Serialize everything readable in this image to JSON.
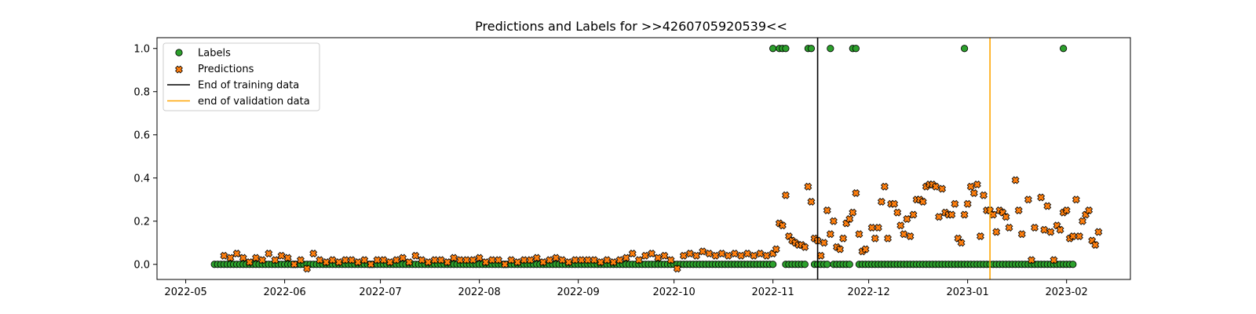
{
  "chart_data": {
    "type": "scatter",
    "title": "Predictions and Labels for >>4260705920539<<",
    "xlabel": "",
    "ylabel": "",
    "x_axis": {
      "type": "date",
      "range": [
        "2022-04-22",
        "2023-02-21"
      ],
      "ticks": [
        "2022-05-01",
        "2022-06-01",
        "2022-07-01",
        "2022-08-01",
        "2022-09-01",
        "2022-10-01",
        "2022-11-01",
        "2022-12-01",
        "2023-01-01",
        "2023-02-01"
      ],
      "tick_labels": [
        "2022-05",
        "2022-06",
        "2022-07",
        "2022-08",
        "2022-09",
        "2022-10",
        "2022-11",
        "2022-12",
        "2023-01",
        "2023-02"
      ]
    },
    "y_axis": {
      "range": [
        -0.07,
        1.05
      ],
      "ticks": [
        0.0,
        0.2,
        0.4,
        0.6,
        0.8,
        1.0
      ],
      "tick_labels": [
        "0.0",
        "0.2",
        "0.4",
        "0.6",
        "0.8",
        "1.0"
      ]
    },
    "grid": false,
    "legend": {
      "placement": "top-left",
      "entries": [
        {
          "label": "Labels",
          "marker": "circle",
          "color": "#2ca02c"
        },
        {
          "label": "Predictions",
          "marker": "x",
          "color": "#ff7f0e"
        },
        {
          "label": "End of training data",
          "marker": "line",
          "color": "#000000"
        },
        {
          "label": "end of validation data",
          "marker": "line",
          "color": "#ffa500"
        }
      ]
    },
    "vlines": [
      {
        "name": "End of training data",
        "x": "2022-11-15",
        "color": "#000000"
      },
      {
        "name": "end of validation data",
        "x": "2023-01-08",
        "color": "#ffa500"
      }
    ],
    "series": [
      {
        "name": "Labels",
        "marker": "circle",
        "color": "#2ca02c",
        "start_date": "2022-05-10",
        "end_date": "2023-02-03",
        "default_value": 0.0,
        "gaps": [
          [
            "2022-11-02",
            "2022-11-04"
          ],
          [
            "2022-11-12",
            "2022-11-13"
          ],
          [
            "2022-11-19",
            "2022-11-19"
          ],
          [
            "2022-11-26",
            "2022-11-27"
          ]
        ],
        "ones": [
          "2022-11-01",
          "2022-11-03",
          "2022-11-04",
          "2022-11-05",
          "2022-11-12",
          "2022-11-13",
          "2022-11-19",
          "2022-11-26",
          "2022-11-27",
          "2022-12-31",
          "2023-01-31"
        ]
      },
      {
        "name": "Predictions",
        "marker": "x",
        "color": "#ff7f0e",
        "points": [
          [
            "2022-05-13",
            0.04
          ],
          [
            "2022-05-15",
            0.03
          ],
          [
            "2022-05-17",
            0.05
          ],
          [
            "2022-05-19",
            0.03
          ],
          [
            "2022-05-21",
            0.01
          ],
          [
            "2022-05-23",
            0.03
          ],
          [
            "2022-05-25",
            0.02
          ],
          [
            "2022-05-27",
            0.05
          ],
          [
            "2022-05-29",
            0.02
          ],
          [
            "2022-05-31",
            0.04
          ],
          [
            "2022-06-02",
            0.03
          ],
          [
            "2022-06-04",
            0.0
          ],
          [
            "2022-06-06",
            0.02
          ],
          [
            "2022-06-08",
            -0.02
          ],
          [
            "2022-06-10",
            0.05
          ],
          [
            "2022-06-12",
            0.02
          ],
          [
            "2022-06-14",
            0.01
          ],
          [
            "2022-06-16",
            0.02
          ],
          [
            "2022-06-18",
            0.01
          ],
          [
            "2022-06-20",
            0.02
          ],
          [
            "2022-06-22",
            0.02
          ],
          [
            "2022-06-24",
            0.01
          ],
          [
            "2022-06-26",
            0.02
          ],
          [
            "2022-06-28",
            0.0
          ],
          [
            "2022-06-30",
            0.02
          ],
          [
            "2022-07-02",
            0.02
          ],
          [
            "2022-07-04",
            0.01
          ],
          [
            "2022-07-06",
            0.02
          ],
          [
            "2022-07-08",
            0.03
          ],
          [
            "2022-07-10",
            0.01
          ],
          [
            "2022-07-12",
            0.04
          ],
          [
            "2022-07-14",
            0.02
          ],
          [
            "2022-07-16",
            0.01
          ],
          [
            "2022-07-18",
            0.02
          ],
          [
            "2022-07-20",
            0.02
          ],
          [
            "2022-07-22",
            0.01
          ],
          [
            "2022-07-24",
            0.03
          ],
          [
            "2022-07-26",
            0.02
          ],
          [
            "2022-07-28",
            0.02
          ],
          [
            "2022-07-30",
            0.02
          ],
          [
            "2022-08-01",
            0.03
          ],
          [
            "2022-08-03",
            0.01
          ],
          [
            "2022-08-05",
            0.02
          ],
          [
            "2022-08-07",
            0.02
          ],
          [
            "2022-08-09",
            0.0
          ],
          [
            "2022-08-11",
            0.02
          ],
          [
            "2022-08-13",
            0.01
          ],
          [
            "2022-08-15",
            0.02
          ],
          [
            "2022-08-17",
            0.02
          ],
          [
            "2022-08-19",
            0.03
          ],
          [
            "2022-08-21",
            0.01
          ],
          [
            "2022-08-23",
            0.02
          ],
          [
            "2022-08-25",
            0.03
          ],
          [
            "2022-08-27",
            0.02
          ],
          [
            "2022-08-29",
            0.01
          ],
          [
            "2022-08-31",
            0.02
          ],
          [
            "2022-09-02",
            0.02
          ],
          [
            "2022-09-04",
            0.02
          ],
          [
            "2022-09-06",
            0.02
          ],
          [
            "2022-09-08",
            0.01
          ],
          [
            "2022-09-10",
            0.02
          ],
          [
            "2022-09-12",
            0.01
          ],
          [
            "2022-09-14",
            0.02
          ],
          [
            "2022-09-16",
            0.03
          ],
          [
            "2022-09-18",
            0.05
          ],
          [
            "2022-09-20",
            0.02
          ],
          [
            "2022-09-22",
            0.04
          ],
          [
            "2022-09-24",
            0.05
          ],
          [
            "2022-09-26",
            0.03
          ],
          [
            "2022-09-28",
            0.04
          ],
          [
            "2022-09-30",
            0.02
          ],
          [
            "2022-10-02",
            -0.02
          ],
          [
            "2022-10-04",
            0.04
          ],
          [
            "2022-10-06",
            0.05
          ],
          [
            "2022-10-08",
            0.04
          ],
          [
            "2022-10-10",
            0.06
          ],
          [
            "2022-10-12",
            0.05
          ],
          [
            "2022-10-14",
            0.04
          ],
          [
            "2022-10-16",
            0.05
          ],
          [
            "2022-10-18",
            0.04
          ],
          [
            "2022-10-20",
            0.05
          ],
          [
            "2022-10-22",
            0.04
          ],
          [
            "2022-10-24",
            0.05
          ],
          [
            "2022-10-26",
            0.04
          ],
          [
            "2022-10-28",
            0.05
          ],
          [
            "2022-10-30",
            0.04
          ],
          [
            "2022-11-01",
            0.05
          ],
          [
            "2022-11-02",
            0.07
          ],
          [
            "2022-11-03",
            0.19
          ],
          [
            "2022-11-04",
            0.18
          ],
          [
            "2022-11-05",
            0.32
          ],
          [
            "2022-11-06",
            0.13
          ],
          [
            "2022-11-07",
            0.11
          ],
          [
            "2022-11-08",
            0.1
          ],
          [
            "2022-11-09",
            0.09
          ],
          [
            "2022-11-10",
            0.09
          ],
          [
            "2022-11-11",
            0.08
          ],
          [
            "2022-11-12",
            0.36
          ],
          [
            "2022-11-13",
            0.29
          ],
          [
            "2022-11-14",
            0.12
          ],
          [
            "2022-11-15",
            0.11
          ],
          [
            "2022-11-16",
            0.04
          ],
          [
            "2022-11-17",
            0.1
          ],
          [
            "2022-11-18",
            0.25
          ],
          [
            "2022-11-19",
            0.14
          ],
          [
            "2022-11-20",
            0.2
          ],
          [
            "2022-11-21",
            0.08
          ],
          [
            "2022-11-22",
            0.07
          ],
          [
            "2022-11-23",
            0.12
          ],
          [
            "2022-11-24",
            0.19
          ],
          [
            "2022-11-25",
            0.21
          ],
          [
            "2022-11-26",
            0.24
          ],
          [
            "2022-11-27",
            0.33
          ],
          [
            "2022-11-28",
            0.14
          ],
          [
            "2022-11-29",
            0.06
          ],
          [
            "2022-11-30",
            0.07
          ],
          [
            "2022-12-02",
            0.17
          ],
          [
            "2022-12-03",
            0.12
          ],
          [
            "2022-12-04",
            0.17
          ],
          [
            "2022-12-05",
            0.29
          ],
          [
            "2022-12-06",
            0.36
          ],
          [
            "2022-12-07",
            0.12
          ],
          [
            "2022-12-08",
            0.28
          ],
          [
            "2022-12-09",
            0.28
          ],
          [
            "2022-12-10",
            0.24
          ],
          [
            "2022-12-11",
            0.18
          ],
          [
            "2022-12-12",
            0.14
          ],
          [
            "2022-12-13",
            0.21
          ],
          [
            "2022-12-14",
            0.13
          ],
          [
            "2022-12-15",
            0.23
          ],
          [
            "2022-12-16",
            0.3
          ],
          [
            "2022-12-17",
            0.3
          ],
          [
            "2022-12-18",
            0.29
          ],
          [
            "2022-12-19",
            0.36
          ],
          [
            "2022-12-20",
            0.37
          ],
          [
            "2022-12-21",
            0.37
          ],
          [
            "2022-12-22",
            0.36
          ],
          [
            "2022-12-23",
            0.22
          ],
          [
            "2022-12-24",
            0.35
          ],
          [
            "2022-12-25",
            0.24
          ],
          [
            "2022-12-26",
            0.23
          ],
          [
            "2022-12-27",
            0.23
          ],
          [
            "2022-12-28",
            0.28
          ],
          [
            "2022-12-29",
            0.12
          ],
          [
            "2022-12-30",
            0.1
          ],
          [
            "2022-12-31",
            0.23
          ],
          [
            "2023-01-01",
            0.28
          ],
          [
            "2023-01-02",
            0.36
          ],
          [
            "2023-01-03",
            0.33
          ],
          [
            "2023-01-04",
            0.37
          ],
          [
            "2023-01-05",
            0.13
          ],
          [
            "2023-01-06",
            0.32
          ],
          [
            "2023-01-07",
            0.25
          ],
          [
            "2023-01-08",
            0.25
          ],
          [
            "2023-01-09",
            0.23
          ],
          [
            "2023-01-10",
            0.15
          ],
          [
            "2023-01-11",
            0.25
          ],
          [
            "2023-01-12",
            0.24
          ],
          [
            "2023-01-13",
            0.22
          ],
          [
            "2023-01-14",
            0.17
          ],
          [
            "2023-01-16",
            0.39
          ],
          [
            "2023-01-17",
            0.25
          ],
          [
            "2023-01-18",
            0.14
          ],
          [
            "2023-01-20",
            0.3
          ],
          [
            "2023-01-21",
            0.02
          ],
          [
            "2023-01-22",
            0.17
          ],
          [
            "2023-01-24",
            0.31
          ],
          [
            "2023-01-25",
            0.16
          ],
          [
            "2023-01-26",
            0.27
          ],
          [
            "2023-01-27",
            0.15
          ],
          [
            "2023-01-28",
            0.02
          ],
          [
            "2023-01-29",
            0.18
          ],
          [
            "2023-01-30",
            0.16
          ],
          [
            "2023-01-31",
            0.24
          ],
          [
            "2023-02-01",
            0.25
          ],
          [
            "2023-02-02",
            0.12
          ],
          [
            "2023-02-03",
            0.13
          ],
          [
            "2023-02-04",
            0.3
          ],
          [
            "2023-02-05",
            0.13
          ],
          [
            "2023-02-06",
            0.2
          ],
          [
            "2023-02-07",
            0.23
          ],
          [
            "2023-02-08",
            0.25
          ],
          [
            "2023-02-09",
            0.11
          ],
          [
            "2023-02-10",
            0.09
          ],
          [
            "2023-02-11",
            0.15
          ]
        ]
      }
    ]
  }
}
